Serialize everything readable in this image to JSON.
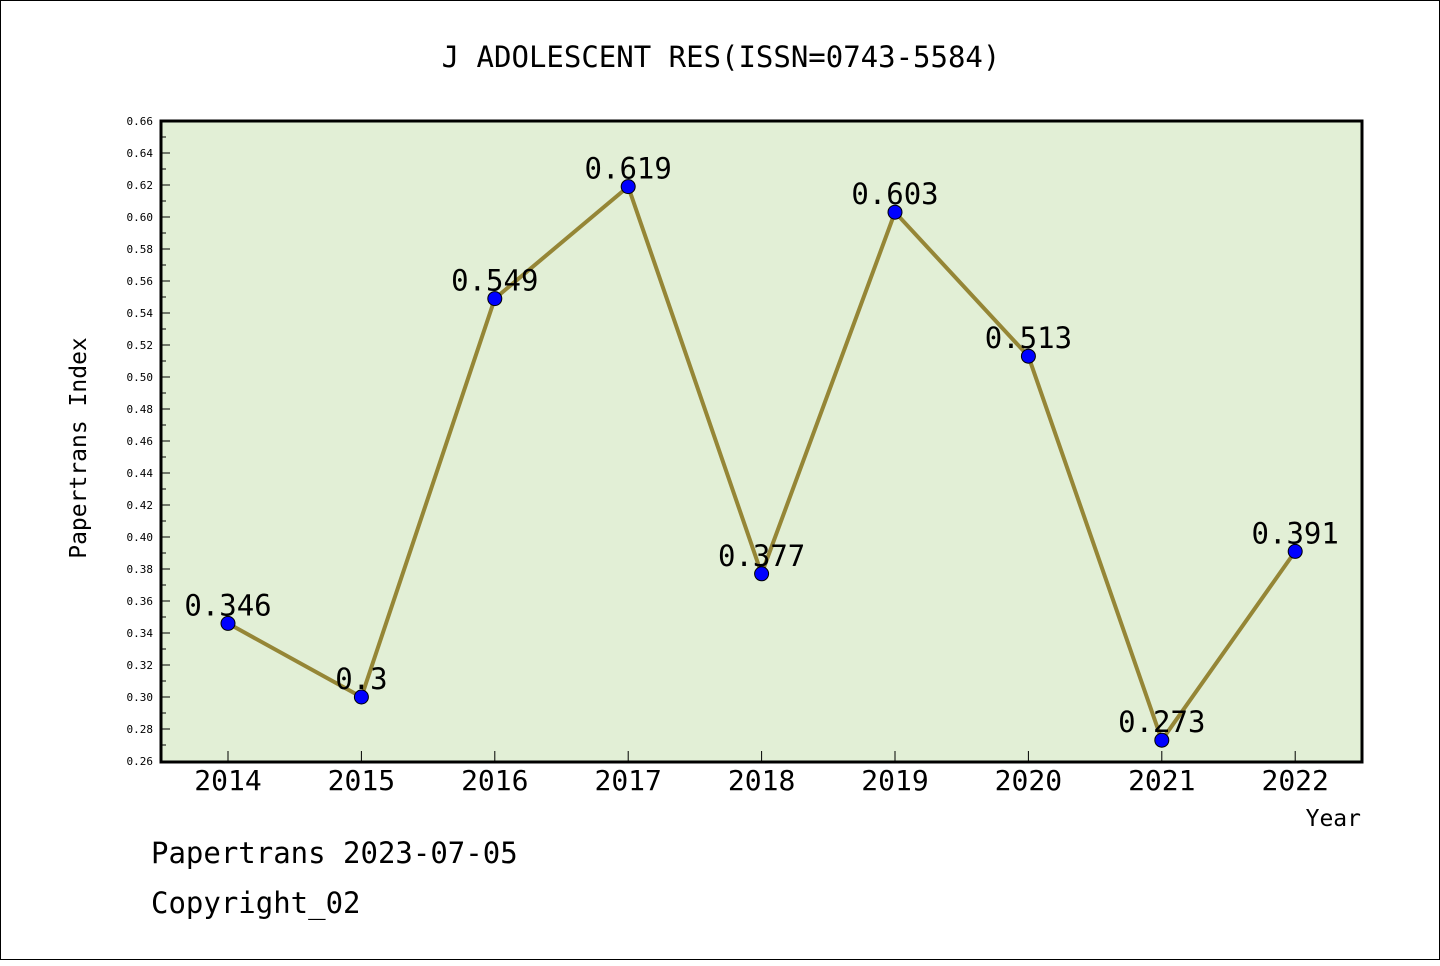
{
  "chart_data": {
    "type": "line",
    "title": "J ADOLESCENT RES(ISSN=0743-5584)",
    "xlabel": "Year",
    "ylabel": "Papertrans Index",
    "categories": [
      "2014",
      "2015",
      "2016",
      "2017",
      "2018",
      "2019",
      "2020",
      "2021",
      "2022"
    ],
    "values": [
      0.346,
      0.3,
      0.549,
      0.619,
      0.377,
      0.603,
      0.513,
      0.273,
      0.391
    ],
    "data_labels": [
      "0.346",
      "0.3",
      "0.549",
      "0.619",
      "0.377",
      "0.603",
      "0.513",
      "0.273",
      "0.391"
    ],
    "ylim": [
      0.26,
      0.66
    ],
    "yticks": [
      "0.26",
      "0.28",
      "0.30",
      "0.32",
      "0.34",
      "0.36",
      "0.38",
      "0.40",
      "0.42",
      "0.44",
      "0.46",
      "0.48",
      "0.50",
      "0.52",
      "0.54",
      "0.56",
      "0.58",
      "0.60",
      "0.62",
      "0.64",
      "0.66"
    ],
    "grid": false,
    "colors": {
      "plot_background": "#e2efd6",
      "line": "#958636",
      "marker": "#0000ff"
    }
  },
  "footer": {
    "line1": "Papertrans 2023-07-05",
    "line2": "Copyright_02"
  }
}
